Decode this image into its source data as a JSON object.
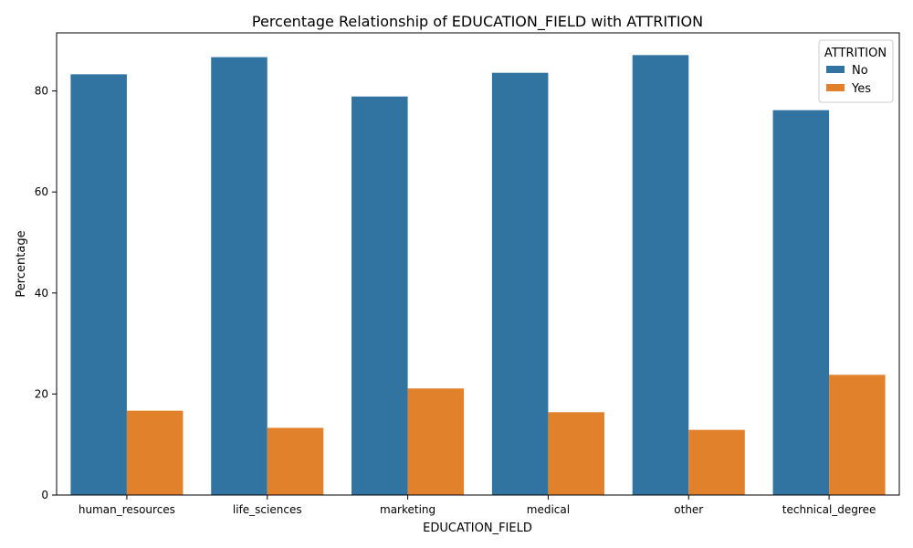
{
  "chart_data": {
    "type": "bar",
    "title": "Percentage Relationship of EDUCATION_FIELD with ATTRITION",
    "xlabel": "EDUCATION_FIELD",
    "ylabel": "Percentage",
    "categories": [
      "human_resources",
      "life_sciences",
      "marketing",
      "medical",
      "other",
      "technical_degree"
    ],
    "series": [
      {
        "name": "No",
        "color": "#3274a1",
        "values": [
          83.3,
          86.7,
          78.9,
          83.6,
          87.1,
          76.2
        ]
      },
      {
        "name": "Yes",
        "color": "#e1812c",
        "values": [
          16.7,
          13.3,
          21.1,
          16.4,
          12.9,
          23.8
        ]
      }
    ],
    "ylim": [
      0,
      91.5
    ],
    "yticks": [
      0,
      20,
      40,
      60,
      80
    ],
    "grid": false,
    "legend": {
      "title": "ATTRITION",
      "placement": "top-right"
    }
  }
}
